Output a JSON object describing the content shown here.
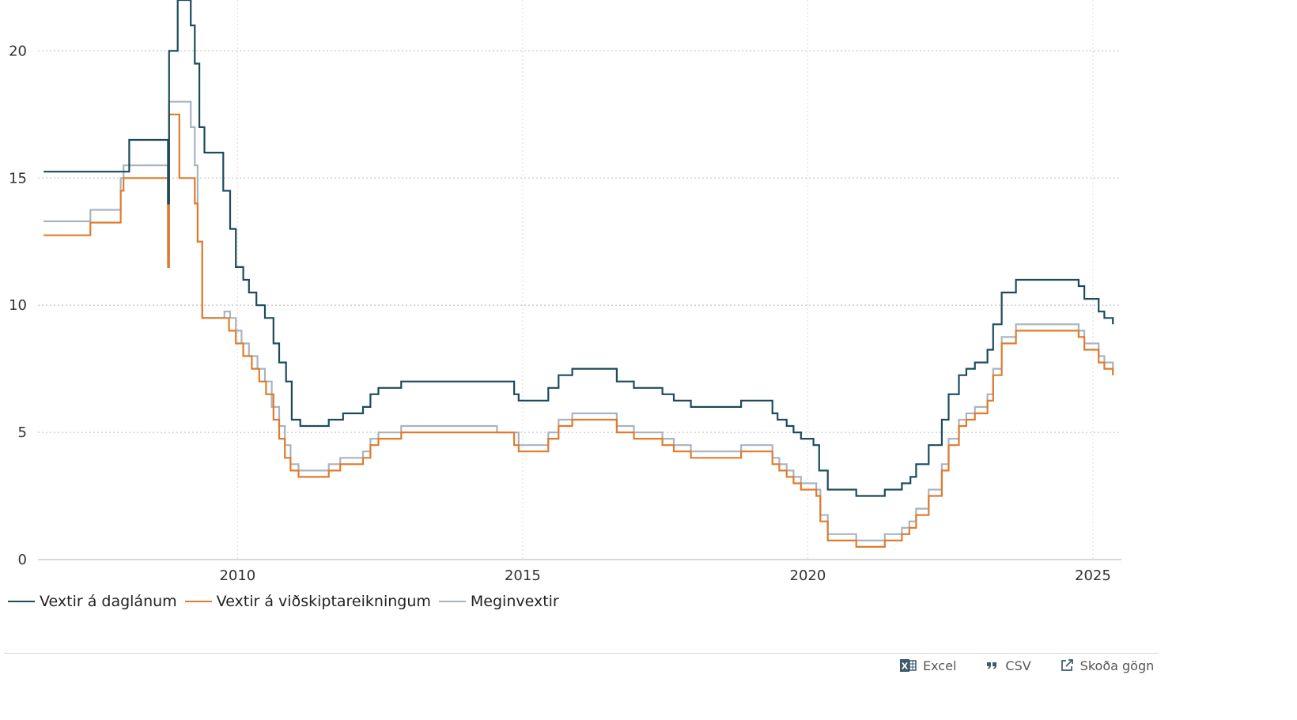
{
  "chart_data": {
    "type": "line",
    "step": true,
    "xlim": [
      2006.5,
      2025.5
    ],
    "ylim": [
      0,
      22
    ],
    "x_ticks": [
      2010,
      2015,
      2020,
      2025
    ],
    "x_tick_labels": [
      "2010",
      "2015",
      "2020",
      "2025"
    ],
    "y_ticks": [
      0,
      5,
      10,
      15,
      20
    ],
    "y_tick_labels": [
      "0",
      "5",
      "10",
      "15",
      "20"
    ],
    "grid": "dotted",
    "legend_position": "bottom-left",
    "series": [
      {
        "name": "Vextir á daglánum",
        "color": "#1c4b5c",
        "points": [
          [
            2006.6,
            15.25
          ],
          [
            2008.1,
            16.5
          ],
          [
            2008.7,
            16.5
          ],
          [
            2008.78,
            14.0
          ],
          [
            2008.8,
            20.0
          ],
          [
            2008.95,
            22.0
          ],
          [
            2009.18,
            21.0
          ],
          [
            2009.25,
            19.5
          ],
          [
            2009.33,
            17.0
          ],
          [
            2009.42,
            16.0
          ],
          [
            2009.75,
            14.5
          ],
          [
            2009.87,
            13.0
          ],
          [
            2009.97,
            11.5
          ],
          [
            2010.1,
            11.0
          ],
          [
            2010.2,
            10.5
          ],
          [
            2010.33,
            10.0
          ],
          [
            2010.48,
            9.5
          ],
          [
            2010.63,
            8.5
          ],
          [
            2010.73,
            7.75
          ],
          [
            2010.85,
            7.0
          ],
          [
            2010.95,
            5.5
          ],
          [
            2011.1,
            5.25
          ],
          [
            2011.6,
            5.5
          ],
          [
            2011.85,
            5.75
          ],
          [
            2012.2,
            6.0
          ],
          [
            2012.33,
            6.5
          ],
          [
            2012.47,
            6.75
          ],
          [
            2012.87,
            7.0
          ],
          [
            2014.85,
            6.5
          ],
          [
            2014.93,
            6.25
          ],
          [
            2015.45,
            6.75
          ],
          [
            2015.63,
            7.25
          ],
          [
            2015.87,
            7.5
          ],
          [
            2016.65,
            7.0
          ],
          [
            2016.95,
            6.75
          ],
          [
            2017.45,
            6.5
          ],
          [
            2017.65,
            6.25
          ],
          [
            2017.95,
            6.0
          ],
          [
            2018.83,
            6.25
          ],
          [
            2019.38,
            5.75
          ],
          [
            2019.47,
            5.5
          ],
          [
            2019.63,
            5.25
          ],
          [
            2019.75,
            5.0
          ],
          [
            2019.88,
            4.75
          ],
          [
            2020.1,
            4.5
          ],
          [
            2020.2,
            3.5
          ],
          [
            2020.35,
            2.75
          ],
          [
            2020.85,
            2.5
          ],
          [
            2021.35,
            2.75
          ],
          [
            2021.65,
            3.0
          ],
          [
            2021.8,
            3.25
          ],
          [
            2021.9,
            3.75
          ],
          [
            2022.12,
            4.5
          ],
          [
            2022.35,
            5.5
          ],
          [
            2022.47,
            6.5
          ],
          [
            2022.65,
            7.25
          ],
          [
            2022.78,
            7.5
          ],
          [
            2022.93,
            7.75
          ],
          [
            2023.15,
            8.25
          ],
          [
            2023.25,
            9.25
          ],
          [
            2023.4,
            10.5
          ],
          [
            2023.65,
            11.0
          ],
          [
            2024.75,
            10.75
          ],
          [
            2024.85,
            10.25
          ],
          [
            2025.1,
            9.75
          ],
          [
            2025.2,
            9.5
          ],
          [
            2025.35,
            9.25
          ]
        ]
      },
      {
        "name": "Vextir á viðskiptareikningum",
        "color": "#e07b2c",
        "points": [
          [
            2006.6,
            12.75
          ],
          [
            2007.42,
            13.25
          ],
          [
            2007.95,
            14.5
          ],
          [
            2008.0,
            15.0
          ],
          [
            2008.75,
            15.0
          ],
          [
            2008.78,
            11.5
          ],
          [
            2008.8,
            17.5
          ],
          [
            2008.9,
            17.5
          ],
          [
            2008.98,
            15.0
          ],
          [
            2009.25,
            14.0
          ],
          [
            2009.3,
            12.5
          ],
          [
            2009.38,
            9.5
          ],
          [
            2009.85,
            9.0
          ],
          [
            2009.97,
            8.5
          ],
          [
            2010.1,
            8.0
          ],
          [
            2010.25,
            7.5
          ],
          [
            2010.38,
            7.0
          ],
          [
            2010.5,
            6.5
          ],
          [
            2010.63,
            5.5
          ],
          [
            2010.73,
            4.75
          ],
          [
            2010.83,
            4.0
          ],
          [
            2010.93,
            3.5
          ],
          [
            2011.07,
            3.25
          ],
          [
            2011.6,
            3.5
          ],
          [
            2011.8,
            3.75
          ],
          [
            2012.2,
            4.0
          ],
          [
            2012.33,
            4.5
          ],
          [
            2012.47,
            4.75
          ],
          [
            2012.87,
            5.0
          ],
          [
            2014.85,
            4.5
          ],
          [
            2014.93,
            4.25
          ],
          [
            2015.45,
            4.75
          ],
          [
            2015.63,
            5.25
          ],
          [
            2015.87,
            5.5
          ],
          [
            2016.65,
            5.0
          ],
          [
            2016.95,
            4.75
          ],
          [
            2017.45,
            4.5
          ],
          [
            2017.65,
            4.25
          ],
          [
            2017.95,
            4.0
          ],
          [
            2018.83,
            4.25
          ],
          [
            2019.38,
            3.75
          ],
          [
            2019.5,
            3.5
          ],
          [
            2019.63,
            3.25
          ],
          [
            2019.75,
            3.0
          ],
          [
            2019.88,
            2.75
          ],
          [
            2020.15,
            2.5
          ],
          [
            2020.22,
            1.5
          ],
          [
            2020.35,
            0.75
          ],
          [
            2020.85,
            0.5
          ],
          [
            2021.35,
            0.75
          ],
          [
            2021.65,
            1.0
          ],
          [
            2021.78,
            1.25
          ],
          [
            2021.9,
            1.75
          ],
          [
            2022.12,
            2.5
          ],
          [
            2022.35,
            3.5
          ],
          [
            2022.47,
            4.5
          ],
          [
            2022.65,
            5.25
          ],
          [
            2022.78,
            5.5
          ],
          [
            2022.93,
            5.75
          ],
          [
            2023.15,
            6.25
          ],
          [
            2023.25,
            7.25
          ],
          [
            2023.4,
            8.5
          ],
          [
            2023.65,
            9.0
          ],
          [
            2024.75,
            8.75
          ],
          [
            2024.85,
            8.25
          ],
          [
            2025.1,
            7.75
          ],
          [
            2025.2,
            7.5
          ],
          [
            2025.35,
            7.25
          ]
        ]
      },
      {
        "name": "Meginvextir",
        "color": "#a8b4c2",
        "points": [
          [
            2006.6,
            13.3
          ],
          [
            2007.42,
            13.75
          ],
          [
            2007.95,
            15.0
          ],
          [
            2008.0,
            15.5
          ],
          [
            2008.75,
            15.5
          ],
          [
            2008.78,
            12.0
          ],
          [
            2008.8,
            18.0
          ],
          [
            2009.18,
            17.0
          ],
          [
            2009.25,
            15.5
          ],
          [
            2009.3,
            12.5
          ],
          [
            2009.38,
            9.5
          ],
          [
            2009.77,
            9.75
          ],
          [
            2009.87,
            9.5
          ],
          [
            2009.97,
            9.0
          ],
          [
            2010.07,
            8.5
          ],
          [
            2010.2,
            8.0
          ],
          [
            2010.35,
            7.5
          ],
          [
            2010.48,
            7.0
          ],
          [
            2010.6,
            6.0
          ],
          [
            2010.73,
            5.25
          ],
          [
            2010.83,
            4.5
          ],
          [
            2010.93,
            3.75
          ],
          [
            2011.07,
            3.5
          ],
          [
            2011.6,
            3.75
          ],
          [
            2011.8,
            4.0
          ],
          [
            2012.2,
            4.25
          ],
          [
            2012.33,
            4.75
          ],
          [
            2012.47,
            5.0
          ],
          [
            2012.87,
            5.25
          ],
          [
            2014.55,
            5.0
          ],
          [
            2014.93,
            4.5
          ],
          [
            2015.45,
            5.0
          ],
          [
            2015.63,
            5.5
          ],
          [
            2015.87,
            5.75
          ],
          [
            2016.65,
            5.25
          ],
          [
            2016.95,
            5.0
          ],
          [
            2017.45,
            4.75
          ],
          [
            2017.65,
            4.5
          ],
          [
            2017.95,
            4.25
          ],
          [
            2018.83,
            4.5
          ],
          [
            2019.38,
            4.0
          ],
          [
            2019.5,
            3.75
          ],
          [
            2019.63,
            3.5
          ],
          [
            2019.75,
            3.25
          ],
          [
            2019.88,
            3.0
          ],
          [
            2020.15,
            2.75
          ],
          [
            2020.22,
            1.75
          ],
          [
            2020.35,
            1.0
          ],
          [
            2020.85,
            0.75
          ],
          [
            2021.35,
            1.0
          ],
          [
            2021.65,
            1.25
          ],
          [
            2021.78,
            1.5
          ],
          [
            2021.9,
            2.0
          ],
          [
            2022.12,
            2.75
          ],
          [
            2022.35,
            3.75
          ],
          [
            2022.47,
            4.75
          ],
          [
            2022.65,
            5.5
          ],
          [
            2022.78,
            5.75
          ],
          [
            2022.93,
            6.0
          ],
          [
            2023.15,
            6.5
          ],
          [
            2023.25,
            7.5
          ],
          [
            2023.4,
            8.75
          ],
          [
            2023.65,
            9.25
          ],
          [
            2024.75,
            9.0
          ],
          [
            2024.85,
            8.5
          ],
          [
            2025.1,
            8.0
          ],
          [
            2025.2,
            7.75
          ],
          [
            2025.35,
            7.5
          ]
        ]
      }
    ]
  },
  "actions": {
    "excel": "Excel",
    "csv": "CSV",
    "view": "Skoða gögn"
  }
}
